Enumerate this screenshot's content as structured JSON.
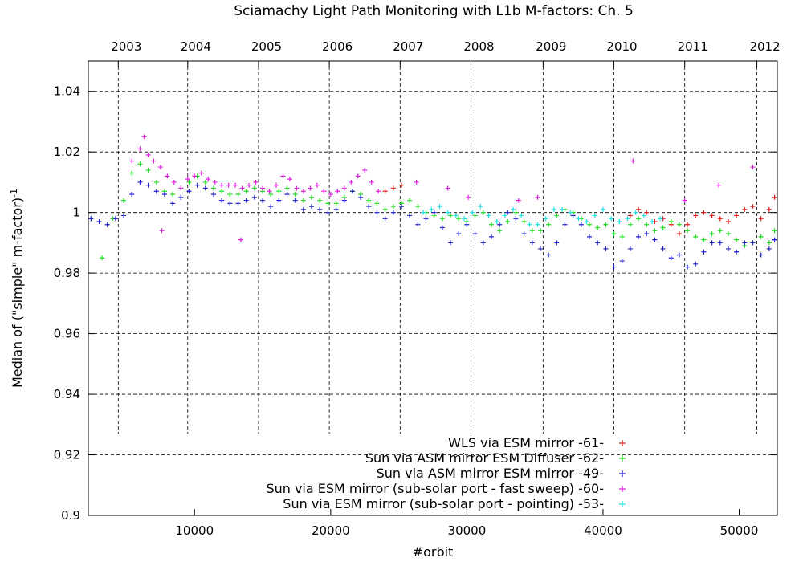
{
  "chart_data": {
    "type": "scatter",
    "title": "Sciamachy Light Path Monitoring with L1b M-factors: Ch. 5",
    "xlabel": "#orbit",
    "ylabel": "Median of (\"simple\" m-factor)",
    "ylabel_superscript": "-1",
    "xlim": [
      2200,
      52800
    ],
    "ylim": [
      0.9,
      1.05
    ],
    "x_ticks": [
      10000,
      20000,
      30000,
      40000,
      50000
    ],
    "x_tick_labels": [
      "10000",
      "20000",
      "30000",
      "40000",
      "50000"
    ],
    "y_ticks": [
      0.9,
      0.92,
      0.94,
      0.96,
      0.98,
      1.0,
      1.02,
      1.04
    ],
    "y_tick_labels": [
      "0.9",
      "0.92",
      "0.94",
      "0.96",
      "0.98",
      "1",
      "1.02",
      "1.04"
    ],
    "top_axis": {
      "labels": [
        "2003",
        "2004",
        "2005",
        "2006",
        "2007",
        "2008",
        "2009",
        "2010",
        "2011",
        "2012"
      ],
      "orbits": [
        4400,
        9500,
        14700,
        19900,
        25100,
        30300,
        35600,
        40800,
        46000,
        51300
      ]
    },
    "grid": true,
    "legend_position": "bottom-right",
    "marker": "+",
    "series": [
      {
        "name": "WLS via ESM mirror -61-",
        "color": "#e41a1c",
        "x": [
          24000,
          24600,
          25200,
          42000,
          42600,
          43200,
          43800,
          44400,
          45000,
          45600,
          46200,
          46800,
          47400,
          48000,
          48600,
          49200,
          49800,
          50400,
          51000,
          51600,
          52200,
          52600
        ],
        "y": [
          1.007,
          1.008,
          1.009,
          0.999,
          1.001,
          1.0,
          0.997,
          0.998,
          0.996,
          0.993,
          0.996,
          0.999,
          1.0,
          0.999,
          0.998,
          0.997,
          0.999,
          1.001,
          1.002,
          0.998,
          1.001,
          1.005
        ]
      },
      {
        "name": "Sun via ASM mirror  ESM Diffuser -62-",
        "color": "#1fdd1f",
        "x": [
          2400,
          3200,
          4000,
          4800,
          5400,
          6000,
          6600,
          7200,
          7800,
          8400,
          9000,
          9600,
          10200,
          10800,
          11400,
          12000,
          12600,
          13200,
          13800,
          14400,
          15000,
          15600,
          16200,
          16800,
          17400,
          18000,
          18600,
          19200,
          19800,
          20400,
          21000,
          21600,
          22200,
          22800,
          23400,
          24000,
          24600,
          25200,
          25800,
          26400,
          27000,
          27600,
          28200,
          28800,
          29400,
          30000,
          30600,
          31200,
          31800,
          32400,
          33000,
          33600,
          34200,
          34800,
          35400,
          36000,
          36600,
          37200,
          37800,
          38400,
          39000,
          39600,
          40200,
          40800,
          41400,
          42000,
          42600,
          43200,
          43800,
          44400,
          45000,
          45600,
          46200,
          46800,
          47400,
          48000,
          48600,
          49200,
          49800,
          50400,
          51000,
          51600,
          52200,
          52600
        ],
        "y": [
          0.998,
          0.985,
          0.998,
          1.004,
          1.013,
          1.016,
          1.014,
          1.01,
          1.007,
          1.006,
          1.008,
          1.01,
          1.012,
          1.01,
          1.008,
          1.007,
          1.006,
          1.006,
          1.007,
          1.008,
          1.007,
          1.006,
          1.007,
          1.008,
          1.006,
          1.004,
          1.005,
          1.004,
          1.003,
          1.003,
          1.005,
          1.007,
          1.006,
          1.004,
          1.003,
          1.001,
          1.002,
          1.003,
          1.004,
          1.002,
          1.0,
          0.999,
          0.998,
          0.999,
          0.998,
          0.997,
          0.999,
          1.0,
          0.996,
          0.994,
          0.997,
          1.0,
          0.997,
          0.994,
          0.994,
          0.996,
          0.999,
          1.001,
          1.0,
          0.998,
          0.996,
          0.995,
          0.996,
          0.993,
          0.992,
          0.996,
          0.998,
          0.996,
          0.994,
          0.995,
          0.997,
          0.996,
          0.994,
          0.992,
          0.991,
          0.993,
          0.994,
          0.993,
          0.991,
          0.989,
          0.99,
          0.992,
          0.99,
          0.994
        ]
      },
      {
        "name": "Sun via ASM mirror  ESM mirror -49-",
        "color": "#1f1fcc",
        "x": [
          2400,
          3000,
          3600,
          4200,
          4800,
          5400,
          6000,
          6600,
          7200,
          7800,
          8400,
          9000,
          9600,
          10200,
          10800,
          11400,
          12000,
          12600,
          13200,
          13800,
          14400,
          15000,
          15600,
          16200,
          16800,
          17400,
          18000,
          18600,
          19200,
          19800,
          20400,
          21000,
          21600,
          22200,
          22800,
          23400,
          24000,
          24600,
          25200,
          25800,
          26400,
          27000,
          27600,
          28200,
          28800,
          29400,
          30000,
          30600,
          31200,
          31800,
          32400,
          33000,
          33600,
          34200,
          34800,
          35400,
          36000,
          36600,
          37200,
          37800,
          38400,
          39000,
          39600,
          40200,
          40800,
          41400,
          42000,
          42600,
          43200,
          43800,
          44400,
          45000,
          45600,
          46200,
          46800,
          47400,
          48000,
          48600,
          49200,
          49800,
          50400,
          51000,
          51600,
          52200,
          52600
        ],
        "y": [
          0.998,
          0.997,
          0.996,
          0.998,
          0.999,
          1.006,
          1.01,
          1.009,
          1.007,
          1.006,
          1.003,
          1.005,
          1.007,
          1.009,
          1.008,
          1.006,
          1.004,
          1.003,
          1.003,
          1.004,
          1.005,
          1.004,
          1.002,
          1.004,
          1.006,
          1.004,
          1.001,
          1.002,
          1.001,
          1.0,
          1.001,
          1.004,
          1.007,
          1.005,
          1.002,
          1.0,
          0.998,
          1.0,
          1.002,
          0.999,
          0.996,
          0.998,
          1.0,
          0.995,
          0.99,
          0.993,
          0.996,
          0.993,
          0.99,
          0.992,
          0.996,
          1.0,
          0.998,
          0.993,
          0.99,
          0.988,
          0.986,
          0.99,
          0.996,
          0.999,
          0.996,
          0.992,
          0.99,
          0.988,
          0.982,
          0.984,
          0.988,
          0.992,
          0.993,
          0.991,
          0.988,
          0.985,
          0.986,
          0.982,
          0.983,
          0.987,
          0.99,
          0.99,
          0.988,
          0.987,
          0.99,
          0.99,
          0.986,
          0.988,
          0.991
        ]
      },
      {
        "name": "Sun via ESM mirror (sub-solar port - fast sweep) -60-",
        "color": "#e020e0",
        "x": [
          5400,
          6000,
          6300,
          6600,
          7000,
          7500,
          8000,
          8500,
          9000,
          9500,
          10000,
          10500,
          11000,
          11500,
          12000,
          12500,
          13000,
          13500,
          14000,
          14500,
          15000,
          15500,
          16000,
          16500,
          17000,
          17500,
          18000,
          18500,
          19000,
          19500,
          20000,
          20500,
          21000,
          21500,
          22000,
          22500,
          23000,
          23500,
          26300,
          28600,
          30100,
          33800,
          35200,
          42200,
          46000,
          48500,
          51000,
          13400,
          7600
        ],
        "y": [
          1.017,
          1.021,
          1.025,
          1.019,
          1.017,
          1.015,
          1.012,
          1.01,
          1.008,
          1.011,
          1.012,
          1.013,
          1.011,
          1.01,
          1.009,
          1.009,
          1.009,
          1.008,
          1.009,
          1.01,
          1.008,
          1.007,
          1.009,
          1.012,
          1.011,
          1.008,
          1.007,
          1.008,
          1.009,
          1.007,
          1.006,
          1.007,
          1.008,
          1.01,
          1.012,
          1.014,
          1.01,
          1.007,
          1.01,
          1.008,
          1.005,
          1.004,
          1.005,
          1.017,
          1.004,
          1.009,
          1.015,
          0.991,
          0.994
        ]
      },
      {
        "name": "Sun via ESM mirror (sub-solar port - pointing) -53-",
        "color": "#22e0e0",
        "x": [
          26800,
          27400,
          28000,
          28600,
          29200,
          29800,
          30400,
          31000,
          31600,
          32200,
          32800,
          33400,
          34000,
          34600,
          35200,
          35800,
          36400,
          37000,
          37600,
          38200,
          38800,
          39400,
          40000,
          40600,
          41200,
          41800,
          42400,
          43000,
          43600,
          44200
        ],
        "y": [
          1.0,
          1.001,
          1.002,
          1.0,
          0.999,
          0.998,
          1.0,
          1.002,
          0.999,
          0.997,
          0.999,
          1.001,
          0.999,
          0.996,
          0.996,
          0.998,
          1.001,
          1.001,
          1.0,
          0.998,
          0.997,
          0.999,
          1.001,
          0.998,
          0.997,
          0.998,
          1.0,
          0.999,
          0.997,
          0.998
        ]
      }
    ]
  }
}
